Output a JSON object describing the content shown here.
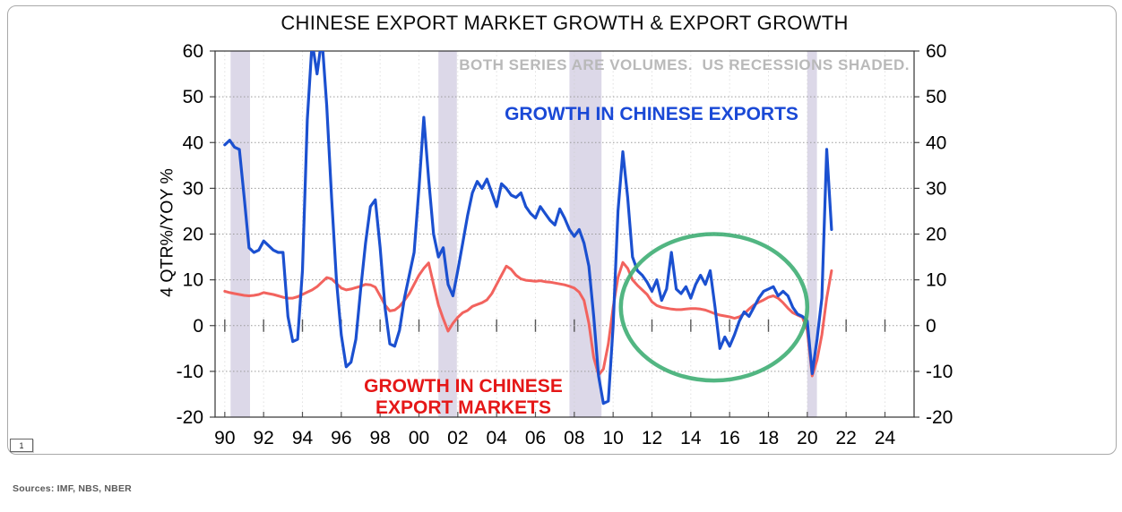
{
  "page": {
    "footer": {
      "sources": "Sources: IMF, NBS, NBER",
      "page_number": "1"
    }
  },
  "chart_data": {
    "type": "line",
    "title": "CHINESE EXPORT MARKET GROWTH & EXPORT GROWTH",
    "subtitle": "BOTH SERIES ARE VOLUMES.  US RECESSIONS SHADED.",
    "ylabel": "4 QTR%/YOY %",
    "x_range": [
      1989.5,
      2025.5
    ],
    "ylim": [
      -20,
      60
    ],
    "y_ticks": [
      60,
      50,
      40,
      30,
      20,
      10,
      0,
      -10,
      -20
    ],
    "x_ticks": [
      {
        "year": 1990,
        "label": "90"
      },
      {
        "year": 1992,
        "label": "92"
      },
      {
        "year": 1994,
        "label": "94"
      },
      {
        "year": 1996,
        "label": "96"
      },
      {
        "year": 1998,
        "label": "98"
      },
      {
        "year": 2000,
        "label": "00"
      },
      {
        "year": 2002,
        "label": "02"
      },
      {
        "year": 2004,
        "label": "04"
      },
      {
        "year": 2006,
        "label": "06"
      },
      {
        "year": 2008,
        "label": "08"
      },
      {
        "year": 2010,
        "label": "10"
      },
      {
        "year": 2012,
        "label": "12"
      },
      {
        "year": 2014,
        "label": "14"
      },
      {
        "year": 2016,
        "label": "16"
      },
      {
        "year": 2018,
        "label": "18"
      },
      {
        "year": 2020,
        "label": "20"
      },
      {
        "year": 2022,
        "label": "22"
      },
      {
        "year": 2024,
        "label": "24"
      }
    ],
    "x_start": 1990.0,
    "x_step": 0.25,
    "grid": "dotted",
    "legend_position": "in-plot labels",
    "recession_color": "#dcd8e8",
    "recession_bands": [
      [
        1990.3,
        1991.3
      ],
      [
        2001.0,
        2001.95
      ],
      [
        2007.75,
        2009.4
      ],
      [
        2020.0,
        2020.5
      ]
    ],
    "annotation_ellipse": {
      "cx": 2015.2,
      "cy": 4,
      "rx": 4.8,
      "ry": 16,
      "color": "#3fae74"
    },
    "series": [
      {
        "name": "GROWTH IN CHINESE EXPORTS",
        "color": "#1b50d0",
        "label_color": "#1a49d6",
        "values": [
          39.5,
          40.5,
          39,
          38.5,
          28,
          17,
          16,
          16.5,
          18.5,
          17.5,
          16.5,
          16,
          16,
          2,
          -3.5,
          -3,
          12,
          45,
          62,
          55,
          63,
          48,
          28,
          10,
          -2,
          -9,
          -8,
          -3,
          8,
          18,
          26,
          27.5,
          17,
          4,
          -4,
          -4.5,
          -1,
          6,
          11,
          16,
          30,
          45.5,
          32,
          20,
          15,
          17,
          9,
          6.5,
          12,
          18,
          24,
          29,
          31.5,
          30,
          32,
          29,
          26,
          31,
          30,
          28.5,
          28,
          29,
          26,
          24.5,
          23.5,
          26,
          24.5,
          23,
          22,
          25.5,
          23.5,
          21,
          19.5,
          21,
          18,
          13,
          2,
          -11,
          -17,
          -16.5,
          0,
          25,
          38,
          28,
          15,
          12,
          11,
          9.5,
          7.5,
          10,
          5.5,
          8,
          16,
          8,
          7,
          8.5,
          6,
          9,
          11,
          9,
          12,
          4,
          -5,
          -2.5,
          -4.5,
          -2,
          1,
          3,
          2,
          4,
          6,
          7.5,
          8,
          8.5,
          6.5,
          7.5,
          6.5,
          4,
          2.5,
          2,
          1,
          -10.5,
          -3,
          6,
          38.5,
          21
        ]
      },
      {
        "name": "GROWTH IN CHINESE EXPORT MARKETS",
        "color": "#f2635e",
        "label_color": "#e51717",
        "values": [
          7.5,
          7.2,
          7,
          6.8,
          6.6,
          6.5,
          6.6,
          6.8,
          7.2,
          7,
          6.8,
          6.5,
          6.2,
          6,
          6,
          6.3,
          6.8,
          7.3,
          7.8,
          8.5,
          9.5,
          10.5,
          10.2,
          9.2,
          8.2,
          7.8,
          8,
          8.3,
          8.6,
          9,
          8.9,
          8.4,
          6.5,
          4.5,
          3.2,
          3.4,
          4.2,
          5.5,
          7,
          9,
          11,
          12.5,
          13.7,
          9,
          4.5,
          1.5,
          -1.2,
          0.5,
          1.8,
          2.8,
          3.3,
          4.2,
          4.6,
          5,
          5.6,
          7,
          9,
          11,
          13,
          12.3,
          11,
          10.2,
          9.9,
          9.8,
          9.7,
          9.8,
          9.6,
          9.5,
          9.3,
          9.1,
          8.9,
          8.6,
          8.2,
          7.3,
          5.5,
          0.5,
          -7,
          -10.8,
          -9.5,
          -4,
          4,
          10.5,
          13.8,
          12.5,
          10,
          8.8,
          7.8,
          6.8,
          5.2,
          4.4,
          4,
          3.8,
          3.6,
          3.5,
          3.5,
          3.6,
          3.7,
          3.7,
          3.6,
          3.4,
          3,
          2.6,
          2.3,
          2.1,
          1.9,
          1.6,
          1.9,
          2.6,
          3.6,
          4.5,
          5.1,
          5.6,
          6.2,
          6.5,
          6,
          5,
          3.8,
          2.8,
          2.3,
          1.8,
          -1,
          -11,
          -7.5,
          -2,
          6,
          12
        ]
      }
    ]
  }
}
